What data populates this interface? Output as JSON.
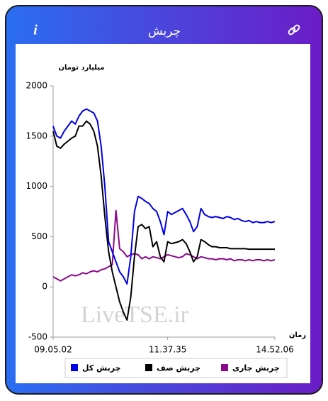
{
  "header": {
    "title": "چربش",
    "info_icon": "i"
  },
  "watermark": "LiveTSE.ir",
  "chart_data": {
    "type": "line",
    "y_label": "میلیارد تومان",
    "x_label": "زمان",
    "ylim": [
      -500,
      2000
    ],
    "yticks": [
      -500,
      0,
      500,
      1000,
      1500,
      2000
    ],
    "grid": false,
    "legend": "bottom",
    "categories": [
      "09.05.02",
      null,
      null,
      null,
      null,
      null,
      null,
      null,
      null,
      null,
      null,
      null,
      null,
      null,
      null,
      null,
      null,
      null,
      null,
      null,
      null,
      null,
      null,
      null,
      null,
      null,
      null,
      null,
      null,
      null,
      null,
      "11.37.35",
      null,
      null,
      null,
      null,
      null,
      null,
      null,
      null,
      null,
      null,
      null,
      null,
      null,
      null,
      null,
      null,
      null,
      null,
      null,
      null,
      null,
      null,
      null,
      null,
      null,
      null,
      null,
      null,
      "14.52.06"
    ],
    "series": [
      {
        "name": "چربش کل",
        "color": "#0000e6",
        "values": [
          1600,
          1500,
          1480,
          1550,
          1600,
          1650,
          1620,
          1700,
          1750,
          1770,
          1750,
          1730,
          1650,
          1400,
          1000,
          450,
          350,
          250,
          150,
          100,
          30,
          300,
          750,
          900,
          880,
          850,
          830,
          780,
          750,
          650,
          520,
          750,
          720,
          740,
          760,
          780,
          720,
          650,
          550,
          600,
          780,
          720,
          700,
          690,
          700,
          690,
          680,
          700,
          690,
          670,
          680,
          660,
          650,
          660,
          640,
          650,
          640,
          640,
          650,
          640,
          650
        ]
      },
      {
        "name": "چربش صف",
        "color": "#000000",
        "values": [
          1550,
          1400,
          1380,
          1420,
          1450,
          1480,
          1500,
          1600,
          1600,
          1650,
          1620,
          1550,
          1400,
          1100,
          700,
          350,
          150,
          0,
          -150,
          -250,
          -330,
          -100,
          300,
          600,
          620,
          580,
          600,
          400,
          450,
          300,
          250,
          450,
          430,
          440,
          450,
          470,
          430,
          350,
          250,
          300,
          470,
          450,
          420,
          400,
          400,
          390,
          390,
          390,
          380,
          380,
          380,
          380,
          380,
          375,
          375,
          375,
          375,
          375,
          375,
          375,
          375
        ]
      },
      {
        "name": "چربش جاری",
        "color": "#8b0a8b",
        "values": [
          100,
          80,
          60,
          80,
          100,
          120,
          110,
          120,
          140,
          130,
          150,
          160,
          150,
          170,
          180,
          200,
          220,
          760,
          380,
          350,
          300,
          320,
          330,
          320,
          280,
          300,
          280,
          300,
          290,
          280,
          300,
          320,
          310,
          300,
          290,
          300,
          330,
          320,
          300,
          280,
          300,
          290,
          280,
          280,
          270,
          280,
          280,
          270,
          280,
          260,
          270,
          270,
          260,
          270,
          260,
          270,
          270,
          260,
          270,
          260,
          270
        ]
      }
    ]
  }
}
